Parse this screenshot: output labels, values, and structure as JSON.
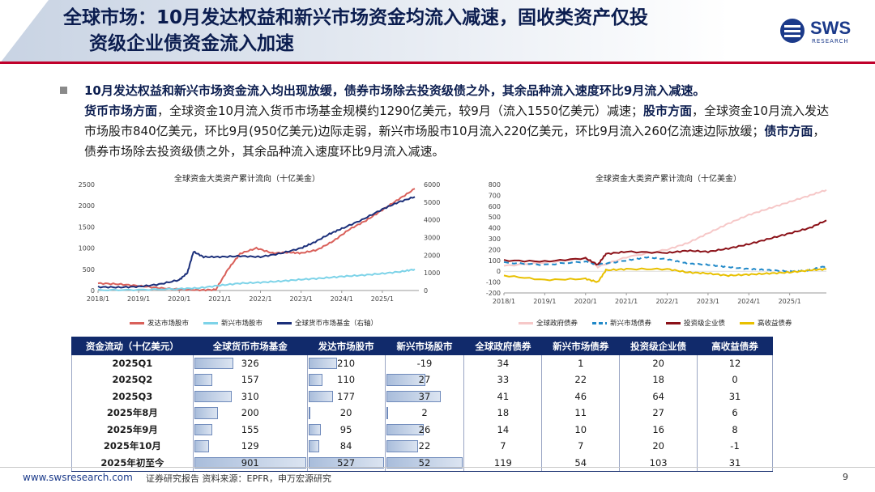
{
  "header": {
    "title_line1": "全球市场：10月发达权益和新兴市场资金均流入减速，固收类资产仅投",
    "title_line2": "资级企业债资金流入加速",
    "logo_text": "SWS",
    "logo_sub": "RESEARCH"
  },
  "bullet": {
    "s1": "10月发达权益和新兴市场资金流入均出现放缓，债券市场除去投资级债之外，其余品种流入速度环比9月流入减速。",
    "s2_label": "货币市场方面",
    "s2": "，全球资金10月流入货币市场基金规模约1290亿美元，较9月（流入1550亿美元）减速；",
    "s3_label": "股市方面",
    "s3": "，全球资金10月流入发达市场股市840亿美元，环比9月(950亿美元)边际走弱，新兴市场股市10月流入220亿美元，环比9月流入260亿流速边际放缓；",
    "s4_label": "债市方面",
    "s4": "，债券市场除去投资级债之外，其余品种流入速度环比9月流入减速。"
  },
  "chart_data": [
    {
      "type": "line",
      "title": "全球资金大类资产累计流向（十亿美金）",
      "x_ticks": [
        "2018/1",
        "2019/1",
        "2020/1",
        "2021/1",
        "2022/1",
        "2023/1",
        "2024/1",
        "2025/1"
      ],
      "y_left_ticks": [
        "0",
        "500",
        "1000",
        "1500",
        "2000",
        "2500"
      ],
      "y_right_ticks": [
        "0",
        "1000",
        "2000",
        "3000",
        "4000",
        "5000",
        "6000"
      ],
      "ylim_left": [
        0,
        2500
      ],
      "ylim_right": [
        0,
        6000
      ],
      "series": [
        {
          "name": "发达市场股市",
          "axis": "left",
          "color": "#d9605a",
          "x": [
            2018.0,
            2018.5,
            2019.0,
            2019.5,
            2020.0,
            2020.5,
            2020.9,
            2021.2,
            2021.5,
            2021.9,
            2022.3,
            2022.7,
            2023.0,
            2023.4,
            2023.8,
            2024.2,
            2024.6,
            2025.0,
            2025.4,
            2025.8
          ],
          "values": [
            170,
            150,
            110,
            60,
            30,
            10,
            20,
            500,
            870,
            1000,
            880,
            900,
            880,
            960,
            1170,
            1450,
            1650,
            1900,
            2150,
            2400
          ]
        },
        {
          "name": "新兴市场股市",
          "axis": "left",
          "color": "#7dd3e8",
          "x": [
            2018.0,
            2019.0,
            2020.0,
            2020.5,
            2021.0,
            2021.5,
            2022.0,
            2022.5,
            2023.0,
            2023.5,
            2024.0,
            2024.5,
            2025.0,
            2025.5,
            2025.8
          ],
          "values": [
            10,
            15,
            40,
            60,
            120,
            170,
            190,
            220,
            260,
            290,
            330,
            360,
            400,
            450,
            500
          ]
        },
        {
          "name": "全球货币市场基金（右轴）",
          "axis": "right",
          "color": "#1b2f7a",
          "x": [
            2018.0,
            2018.5,
            2019.0,
            2019.5,
            2020.0,
            2020.2,
            2020.35,
            2020.6,
            2021.0,
            2021.5,
            2022.0,
            2022.5,
            2023.0,
            2023.3,
            2023.7,
            2024.0,
            2024.5,
            2025.0,
            2025.4,
            2025.8
          ],
          "values": [
            200,
            180,
            220,
            350,
            600,
            1000,
            2200,
            1900,
            1900,
            1950,
            1900,
            2100,
            2400,
            2700,
            3200,
            3500,
            4000,
            4600,
            5000,
            5300
          ]
        }
      ]
    },
    {
      "type": "line",
      "title": "全球资金大类资产累计流向（十亿美金）",
      "x_ticks": [
        "2018/1",
        "2019/1",
        "2020/1",
        "2021/1",
        "2022/1",
        "2023/1",
        "2024/1",
        "2025/1"
      ],
      "y_ticks": [
        "-200",
        "-100",
        "0",
        "100",
        "200",
        "300",
        "400",
        "500",
        "600",
        "700",
        "800"
      ],
      "ylim": [
        -200,
        800
      ],
      "series": [
        {
          "name": "全球政府债券",
          "color": "#f6c8c8",
          "x": [
            2018.0,
            2019.0,
            2020.0,
            2020.3,
            2021.0,
            2022.0,
            2022.5,
            2023.0,
            2023.5,
            2024.0,
            2024.5,
            2025.0,
            2025.5,
            2025.9
          ],
          "values": [
            50,
            80,
            120,
            40,
            130,
            200,
            260,
            350,
            440,
            520,
            580,
            640,
            700,
            750
          ]
        },
        {
          "name": "新兴市场债券",
          "color": "#1f88c8",
          "dashed": true,
          "x": [
            2018.0,
            2019.0,
            2020.0,
            2020.3,
            2021.0,
            2021.5,
            2022.0,
            2022.5,
            2023.0,
            2023.5,
            2024.0,
            2024.5,
            2025.0,
            2025.5,
            2025.9
          ],
          "values": [
            80,
            60,
            90,
            60,
            100,
            130,
            110,
            70,
            60,
            40,
            20,
            10,
            0,
            10,
            50
          ]
        },
        {
          "name": "投资级企业债",
          "color": "#8b1118",
          "x": [
            2018.0,
            2019.0,
            2020.0,
            2020.3,
            2020.5,
            2021.0,
            2022.0,
            2022.5,
            2023.0,
            2023.5,
            2024.0,
            2024.5,
            2025.0,
            2025.5,
            2025.9
          ],
          "values": [
            100,
            90,
            120,
            60,
            160,
            180,
            170,
            190,
            180,
            210,
            250,
            300,
            350,
            400,
            470
          ]
        },
        {
          "name": "高收益债券",
          "color": "#e8c000",
          "x": [
            2018.0,
            2019.0,
            2020.0,
            2020.3,
            2020.5,
            2021.0,
            2022.0,
            2022.5,
            2023.0,
            2023.5,
            2024.0,
            2024.5,
            2025.0,
            2025.5,
            2025.9
          ],
          "values": [
            -40,
            -80,
            -70,
            -100,
            10,
            20,
            20,
            -10,
            -20,
            -40,
            -30,
            -20,
            -10,
            10,
            20
          ]
        }
      ]
    }
  ],
  "table": {
    "headers": [
      "资金流动（十亿美元）",
      "全球货币市场基金",
      "发达市场股市",
      "新兴市场股市",
      "全球政府债券",
      "新兴市场债券",
      "投资级企业债",
      "高收益债券"
    ],
    "rows": [
      {
        "label": "2025Q1",
        "v": [
          "326",
          "210",
          "-19",
          "34",
          "1",
          "20",
          "12"
        ]
      },
      {
        "label": "2025Q2",
        "v": [
          "157",
          "110",
          "27",
          "33",
          "22",
          "18",
          "0"
        ]
      },
      {
        "label": "2025Q3",
        "v": [
          "310",
          "177",
          "37",
          "41",
          "46",
          "64",
          "31"
        ]
      },
      {
        "label": "2025年8月",
        "v": [
          "200",
          "20",
          "2",
          "18",
          "11",
          "27",
          "6"
        ]
      },
      {
        "label": "2025年9月",
        "v": [
          "155",
          "95",
          "26",
          "14",
          "10",
          "16",
          "8"
        ]
      },
      {
        "label": "2025年10月",
        "v": [
          "129",
          "84",
          "22",
          "7",
          "7",
          "20",
          "-1"
        ]
      },
      {
        "label": "2025年初至今",
        "v": [
          "901",
          "527",
          "52",
          "119",
          "54",
          "103",
          "31"
        ]
      }
    ],
    "bar_max": [
      901,
      527,
      52,
      119,
      54,
      103,
      31
    ]
  },
  "footer": {
    "url": "www.swsresearch.com",
    "source": "证券研究报告    资料来源：EPFR，申万宏源研究",
    "page": "9"
  }
}
